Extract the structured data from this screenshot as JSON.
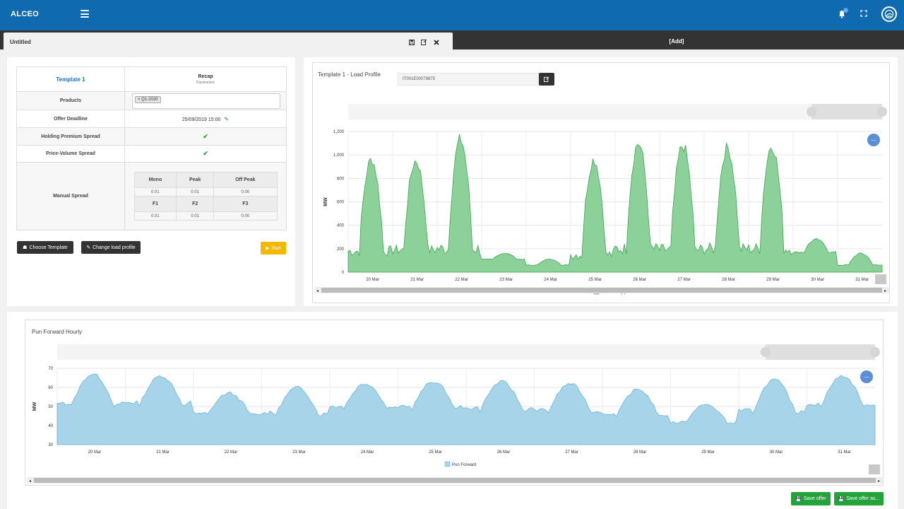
{
  "app": {
    "brand": "ALCEO",
    "notification_count": "0"
  },
  "tabs": {
    "active_title": "Untitled",
    "add_label": "[Add]"
  },
  "params": {
    "template_name": "Template 1",
    "recap_title": "Recap",
    "recap_sub": "Parameters",
    "products_label": "Products",
    "product_tag": "× Q1-2020",
    "deadline_label": "Offer Deadline",
    "deadline_value": "25/09/2019 15:00",
    "holding_label": "Holding Premium Spread",
    "pv_label": "Price-Volume Spread",
    "manual_label": "Manual Spread",
    "spread_headers_1": [
      "Mono",
      "Peak",
      "Off Peak"
    ],
    "spread_values_1": [
      "0.01",
      "0.01",
      "0.00"
    ],
    "spread_headers_2": [
      "F1",
      "F2",
      "F3"
    ],
    "spread_values_2": [
      "0.01",
      "0.01",
      "0.00"
    ]
  },
  "buttons": {
    "choose_template": "Choose Template",
    "change_load_profile": "Change load profile",
    "run": "Run",
    "save_offer": "Save offer",
    "save_offer_as": "Save offer as..."
  },
  "load_profile": {
    "title": "Template 1 - Load Profile",
    "pod_code": "IT001E00079875"
  },
  "pun_forward": {
    "title": "Pun Forward Hourly"
  },
  "colors": {
    "topbar": "#0f6ab0",
    "load_fill": "#8dd19a",
    "load_stroke": "#3ea552",
    "pun_fill": "#a8d4ea",
    "pun_stroke": "#6ab4dc",
    "save_green": "#23a33a",
    "run_yellow": "#f5b800"
  },
  "chart_data": [
    {
      "type": "area",
      "title": "Template 1 - Load Profile",
      "ylabel": "MW",
      "xlabel": "",
      "ylim": [
        0,
        1200
      ],
      "yticks": [
        "0",
        "200",
        "400",
        "600",
        "800",
        "1,000",
        "1,200"
      ],
      "x": [
        "20 Mar",
        "21 Mar",
        "22 Mar",
        "23 Mar",
        "24 Mar",
        "25 Mar",
        "26 Mar",
        "27 Mar",
        "28 Mar",
        "29 Mar",
        "30 Mar",
        "31 Mar"
      ],
      "series": [
        {
          "name": "Load hourly profile",
          "days": [
            {
              "base": 180,
              "peak": 960
            },
            {
              "base": 190,
              "peak": 950
            },
            {
              "base": 200,
              "peak": 1130
            },
            {
              "base": 110,
              "peak": 160
            },
            {
              "base": 60,
              "peak": 110
            },
            {
              "base": 150,
              "peak": 960
            },
            {
              "base": 200,
              "peak": 1100
            },
            {
              "base": 190,
              "peak": 1080
            },
            {
              "base": 200,
              "peak": 1060
            },
            {
              "base": 200,
              "peak": 1080
            },
            {
              "base": 170,
              "peak": 280
            },
            {
              "base": 60,
              "peak": 160
            }
          ]
        }
      ]
    },
    {
      "type": "area",
      "title": "Pun Forward Hourly",
      "ylabel": "MW",
      "xlabel": "",
      "ylim": [
        30,
        70
      ],
      "yticks": [
        "30",
        "40",
        "50",
        "60",
        "70"
      ],
      "x": [
        "20 Mar",
        "21 Mar",
        "22 Mar",
        "23 Mar",
        "24 Mar",
        "25 Mar",
        "26 Mar",
        "27 Mar",
        "28 Mar",
        "29 Mar",
        "30 Mar",
        "31 Mar"
      ],
      "series": [
        {
          "name": "Pun Forward",
          "days": [
            {
              "low": 45,
              "peak": 67
            },
            {
              "low": 46,
              "peak": 66
            },
            {
              "low": 42,
              "peak": 57
            },
            {
              "low": 41,
              "peak": 60
            },
            {
              "low": 45,
              "peak": 62
            },
            {
              "low": 44,
              "peak": 63
            },
            {
              "low": 43,
              "peak": 63
            },
            {
              "low": 42,
              "peak": 62
            },
            {
              "low": 40,
              "peak": 59
            },
            {
              "low": 38,
              "peak": 51
            },
            {
              "low": 41,
              "peak": 64
            },
            {
              "low": 45,
              "peak": 66
            }
          ]
        }
      ]
    }
  ]
}
